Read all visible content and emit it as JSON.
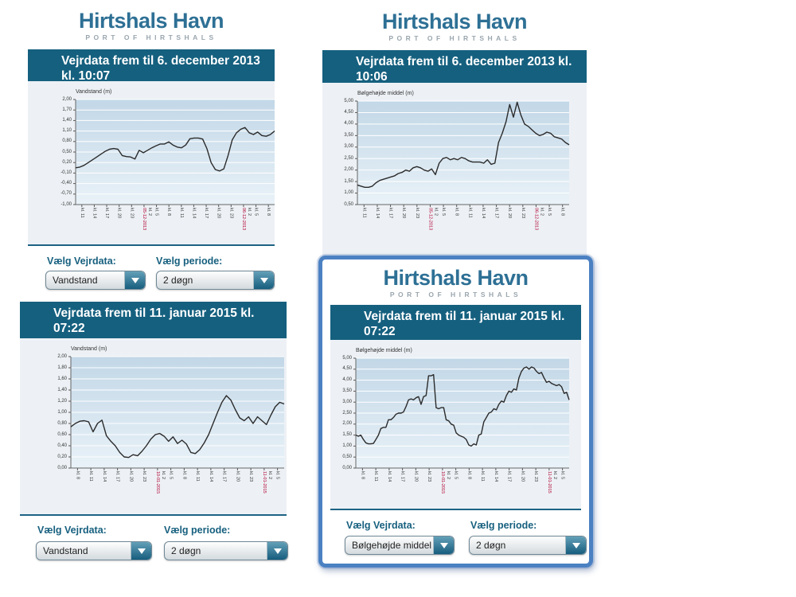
{
  "colors": {
    "header_bg": "#15607f",
    "logo_blue": "#2e7095",
    "logo_gray": "#9aa6ae",
    "label_teal": "#17607f",
    "selection_border": "#4b81c2",
    "chart_panel_bg": "#edf1f5",
    "line_color": "#2b2b2b",
    "date_label_red": "#b00030"
  },
  "widgets": [
    {
      "logo_title": "Hirtshals Havn",
      "logo_subtitle": "PORT OF HIRTSHALS",
      "header": "Vejrdata frem til 6. december 2013 kl. 10:07",
      "vejrdata_label": "Vælg Vejrdata:",
      "periode_label": "Vælg periode:",
      "vejrdata_value": "Vandstand",
      "periode_value": "2 døgn"
    },
    {
      "logo_title": "Hirtshals Havn",
      "logo_subtitle": "PORT OF HIRTSHALS",
      "header": "Vejrdata frem til 6. december 2013 kl. 10:06"
    },
    {
      "logo_subtitle": "PORT OF HIRTSHALS",
      "header": "Vejrdata frem til 11. januar 2015 kl. 07:22",
      "vejrdata_label": "Vælg Vejrdata:",
      "periode_label": "Vælg periode:",
      "vejrdata_value": "Vandstand",
      "periode_value": "2 døgn"
    },
    {
      "logo_title": "Hirtshals Havn",
      "logo_subtitle": "PORT OF HIRTSHALS",
      "header": "Vejrdata frem til 11. januar 2015 kl. 07:22",
      "vejrdata_label": "Vælg Vejrdata:",
      "periode_label": "Vælg periode:",
      "vejrdata_value": "Bølgehøjde middel",
      "periode_value": "2 døgn",
      "selected": true
    }
  ],
  "chart_data": [
    {
      "type": "line",
      "title": "Vandstand (m)",
      "ylabel": "Vandstand (m)",
      "ylim": [
        -1.0,
        2.0
      ],
      "grid": true,
      "yticks": [
        "2,00",
        "1,70",
        "1,40",
        "1,10",
        "0,80",
        "0,50",
        "0,20",
        "-0,10",
        "-0,40",
        "-0,70",
        "-1,00"
      ],
      "x_ticks": [
        {
          "t": "kl. 11"
        },
        {
          "t": "kl. 14"
        },
        {
          "t": "kl. 17"
        },
        {
          "t": "kl. 20"
        },
        {
          "t": "kl. 23"
        },
        {
          "t": "kl. 2",
          "date": "05-12-2013"
        },
        {
          "t": "kl. 5"
        },
        {
          "t": "kl. 8"
        },
        {
          "t": "kl. 11"
        },
        {
          "t": "kl. 14"
        },
        {
          "t": "kl. 17"
        },
        {
          "t": "kl. 20"
        },
        {
          "t": "kl. 23"
        },
        {
          "t": "kl. 2",
          "date": "06-12-2013"
        },
        {
          "t": "kl. 5"
        },
        {
          "t": "kl. 8"
        }
      ],
      "values": [
        0.05,
        0.07,
        0.12,
        0.2,
        0.28,
        0.36,
        0.44,
        0.52,
        0.58,
        0.6,
        0.58,
        0.4,
        0.37,
        0.36,
        0.3,
        0.55,
        0.48,
        0.55,
        0.62,
        0.68,
        0.73,
        0.73,
        0.79,
        0.7,
        0.64,
        0.62,
        0.7,
        0.88,
        0.9,
        0.9,
        0.87,
        0.6,
        0.2,
        0.0,
        -0.04,
        0.02,
        0.4,
        0.85,
        1.05,
        1.15,
        1.2,
        1.05,
        1.0,
        1.07,
        0.97,
        0.95,
        1.0,
        1.1
      ]
    },
    {
      "type": "line",
      "title": "Bølgehøjde middel (m)",
      "ylabel": "Bølgehøjde middel (m)",
      "ylim": [
        0.5,
        5.0
      ],
      "grid": true,
      "yticks": [
        "5,00",
        "4,50",
        "4,00",
        "3,50",
        "3,00",
        "2,50",
        "2,00",
        "1,50",
        "1,00",
        "0,50"
      ],
      "x_ticks": [
        {
          "t": "kl. 11"
        },
        {
          "t": "kl. 14"
        },
        {
          "t": "kl. 17"
        },
        {
          "t": "kl. 20"
        },
        {
          "t": "kl. 23"
        },
        {
          "t": "kl. 2",
          "date": "05-12-2013"
        },
        {
          "t": "kl. 5"
        },
        {
          "t": "kl. 8"
        },
        {
          "t": "kl. 11"
        },
        {
          "t": "kl. 14"
        },
        {
          "t": "kl. 17"
        },
        {
          "t": "kl. 20"
        },
        {
          "t": "kl. 23"
        },
        {
          "t": "kl. 2",
          "date": "06-12-2013"
        },
        {
          "t": "kl. 5"
        },
        {
          "t": "kl. 8"
        }
      ],
      "values": [
        1.35,
        1.3,
        1.25,
        1.25,
        1.3,
        1.45,
        1.55,
        1.6,
        1.65,
        1.7,
        1.75,
        1.85,
        1.9,
        2.0,
        1.95,
        2.1,
        2.15,
        2.1,
        2.0,
        1.95,
        2.05,
        1.8,
        2.3,
        2.5,
        2.55,
        2.45,
        2.5,
        2.45,
        2.55,
        2.5,
        2.4,
        2.35,
        2.35,
        2.35,
        2.3,
        2.45,
        2.25,
        2.3,
        3.2,
        3.6,
        4.1,
        4.85,
        4.3,
        4.95,
        4.4,
        4.0,
        3.9,
        3.75,
        3.6,
        3.5,
        3.55,
        3.65,
        3.6,
        3.45,
        3.4,
        3.35,
        3.2,
        3.1
      ]
    },
    {
      "type": "line",
      "title": "Vandstand (m)",
      "ylabel": "Vandstand (m)",
      "ylim": [
        0.0,
        2.0
      ],
      "grid": true,
      "yticks": [
        "2,00",
        "1,80",
        "1,60",
        "1,40",
        "1,20",
        "1,00",
        "0,80",
        "0,60",
        "0,40",
        "0,20",
        "0,00"
      ],
      "x_ticks": [
        {
          "t": "kl. 8"
        },
        {
          "t": "kl. 11"
        },
        {
          "t": "kl. 14"
        },
        {
          "t": "kl. 17"
        },
        {
          "t": "kl. 20"
        },
        {
          "t": "kl. 23"
        },
        {
          "t": "kl. 2",
          "date": "10-01-2015"
        },
        {
          "t": "kl. 5"
        },
        {
          "t": "kl. 8"
        },
        {
          "t": "kl. 11"
        },
        {
          "t": "kl. 14"
        },
        {
          "t": "kl. 17"
        },
        {
          "t": "kl. 20"
        },
        {
          "t": "kl. 23"
        },
        {
          "t": "kl. 2",
          "date": "11-01-2015"
        },
        {
          "t": "kl. 5"
        }
      ],
      "values": [
        0.74,
        0.8,
        0.84,
        0.85,
        0.83,
        0.65,
        0.8,
        0.86,
        0.58,
        0.48,
        0.4,
        0.28,
        0.2,
        0.19,
        0.24,
        0.22,
        0.3,
        0.4,
        0.52,
        0.6,
        0.62,
        0.57,
        0.48,
        0.56,
        0.44,
        0.5,
        0.43,
        0.28,
        0.26,
        0.33,
        0.45,
        0.6,
        0.8,
        1.0,
        1.18,
        1.3,
        1.22,
        1.05,
        0.9,
        0.85,
        0.92,
        0.8,
        0.92,
        0.85,
        0.78,
        0.95,
        1.1,
        1.18,
        1.15
      ]
    },
    {
      "type": "line",
      "title": "Bølgehøjde middel (m)",
      "ylabel": "Bølgehøjde middel (m)",
      "ylim": [
        0.0,
        5.0
      ],
      "grid": true,
      "yticks": [
        "5,00",
        "4,50",
        "4,00",
        "3,50",
        "3,00",
        "2,50",
        "2,00",
        "1,50",
        "1,00",
        "0,50",
        "0,00"
      ],
      "x_ticks": [
        {
          "t": "kl. 8"
        },
        {
          "t": "kl. 11"
        },
        {
          "t": "kl. 14"
        },
        {
          "t": "kl. 17"
        },
        {
          "t": "kl. 20"
        },
        {
          "t": "kl. 23"
        },
        {
          "t": "kl. 2",
          "date": "10-01-2015"
        },
        {
          "t": "kl. 5"
        },
        {
          "t": "kl. 8"
        },
        {
          "t": "kl. 11"
        },
        {
          "t": "kl. 14"
        },
        {
          "t": "kl. 17"
        },
        {
          "t": "kl. 20"
        },
        {
          "t": "kl. 23"
        },
        {
          "t": "kl. 2",
          "date": "11-01-2015"
        },
        {
          "t": "kl. 5"
        }
      ],
      "values": [
        1.5,
        1.45,
        1.5,
        1.3,
        1.15,
        1.1,
        1.1,
        1.12,
        1.3,
        1.5,
        1.8,
        1.85,
        1.85,
        2.2,
        2.2,
        2.3,
        2.45,
        2.5,
        2.5,
        2.55,
        2.8,
        3.1,
        3.15,
        3.1,
        3.2,
        3.25,
        2.9,
        3.25,
        3.3,
        4.2,
        4.2,
        4.25,
        2.75,
        2.7,
        2.75,
        2.75,
        2.2,
        2.15,
        2.0,
        1.95,
        1.6,
        1.5,
        1.45,
        1.4,
        1.3,
        1.05,
        1.0,
        1.1,
        1.05,
        1.5,
        1.55,
        2.1,
        2.3,
        2.5,
        2.55,
        2.7,
        2.65,
        2.9,
        3.05,
        3.0,
        3.3,
        3.5,
        3.45,
        3.6,
        3.55,
        4.1,
        4.4,
        4.55,
        4.6,
        4.5,
        4.6,
        4.55,
        4.4,
        4.3,
        4.35,
        4.1,
        3.9,
        3.95,
        3.85,
        3.8,
        3.75,
        3.8,
        3.7,
        3.4,
        3.45,
        3.1
      ]
    }
  ]
}
